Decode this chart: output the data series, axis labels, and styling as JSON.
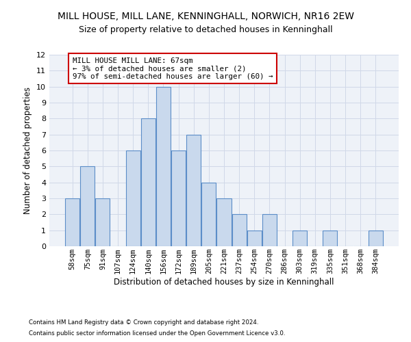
{
  "title1": "MILL HOUSE, MILL LANE, KENNINGHALL, NORWICH, NR16 2EW",
  "title2": "Size of property relative to detached houses in Kenninghall",
  "xlabel": "Distribution of detached houses by size in Kenninghall",
  "ylabel": "Number of detached properties",
  "categories": [
    "58sqm",
    "75sqm",
    "91sqm",
    "107sqm",
    "124sqm",
    "140sqm",
    "156sqm",
    "172sqm",
    "189sqm",
    "205sqm",
    "221sqm",
    "237sqm",
    "254sqm",
    "270sqm",
    "286sqm",
    "303sqm",
    "319sqm",
    "335sqm",
    "351sqm",
    "368sqm",
    "384sqm"
  ],
  "values": [
    3,
    5,
    3,
    0,
    6,
    8,
    10,
    6,
    7,
    4,
    3,
    2,
    1,
    2,
    0,
    1,
    0,
    1,
    0,
    0,
    1
  ],
  "bar_color": "#c9d9ed",
  "bar_edge_color": "#5b8dc8",
  "annotation_box_color": "#ffffff",
  "annotation_border_color": "#cc0000",
  "annotation_text_line1": "MILL HOUSE MILL LANE: 67sqm",
  "annotation_text_line2": "← 3% of detached houses are smaller (2)",
  "annotation_text_line3": "97% of semi-detached houses are larger (60) →",
  "footer1": "Contains HM Land Registry data © Crown copyright and database right 2024.",
  "footer2": "Contains public sector information licensed under the Open Government Licence v3.0.",
  "ylim": [
    0,
    12
  ],
  "yticks": [
    0,
    1,
    2,
    3,
    4,
    5,
    6,
    7,
    8,
    9,
    10,
    11,
    12
  ],
  "grid_color": "#d0d8e8",
  "bg_color": "#eef2f8",
  "title1_fontsize": 10,
  "title2_fontsize": 9
}
